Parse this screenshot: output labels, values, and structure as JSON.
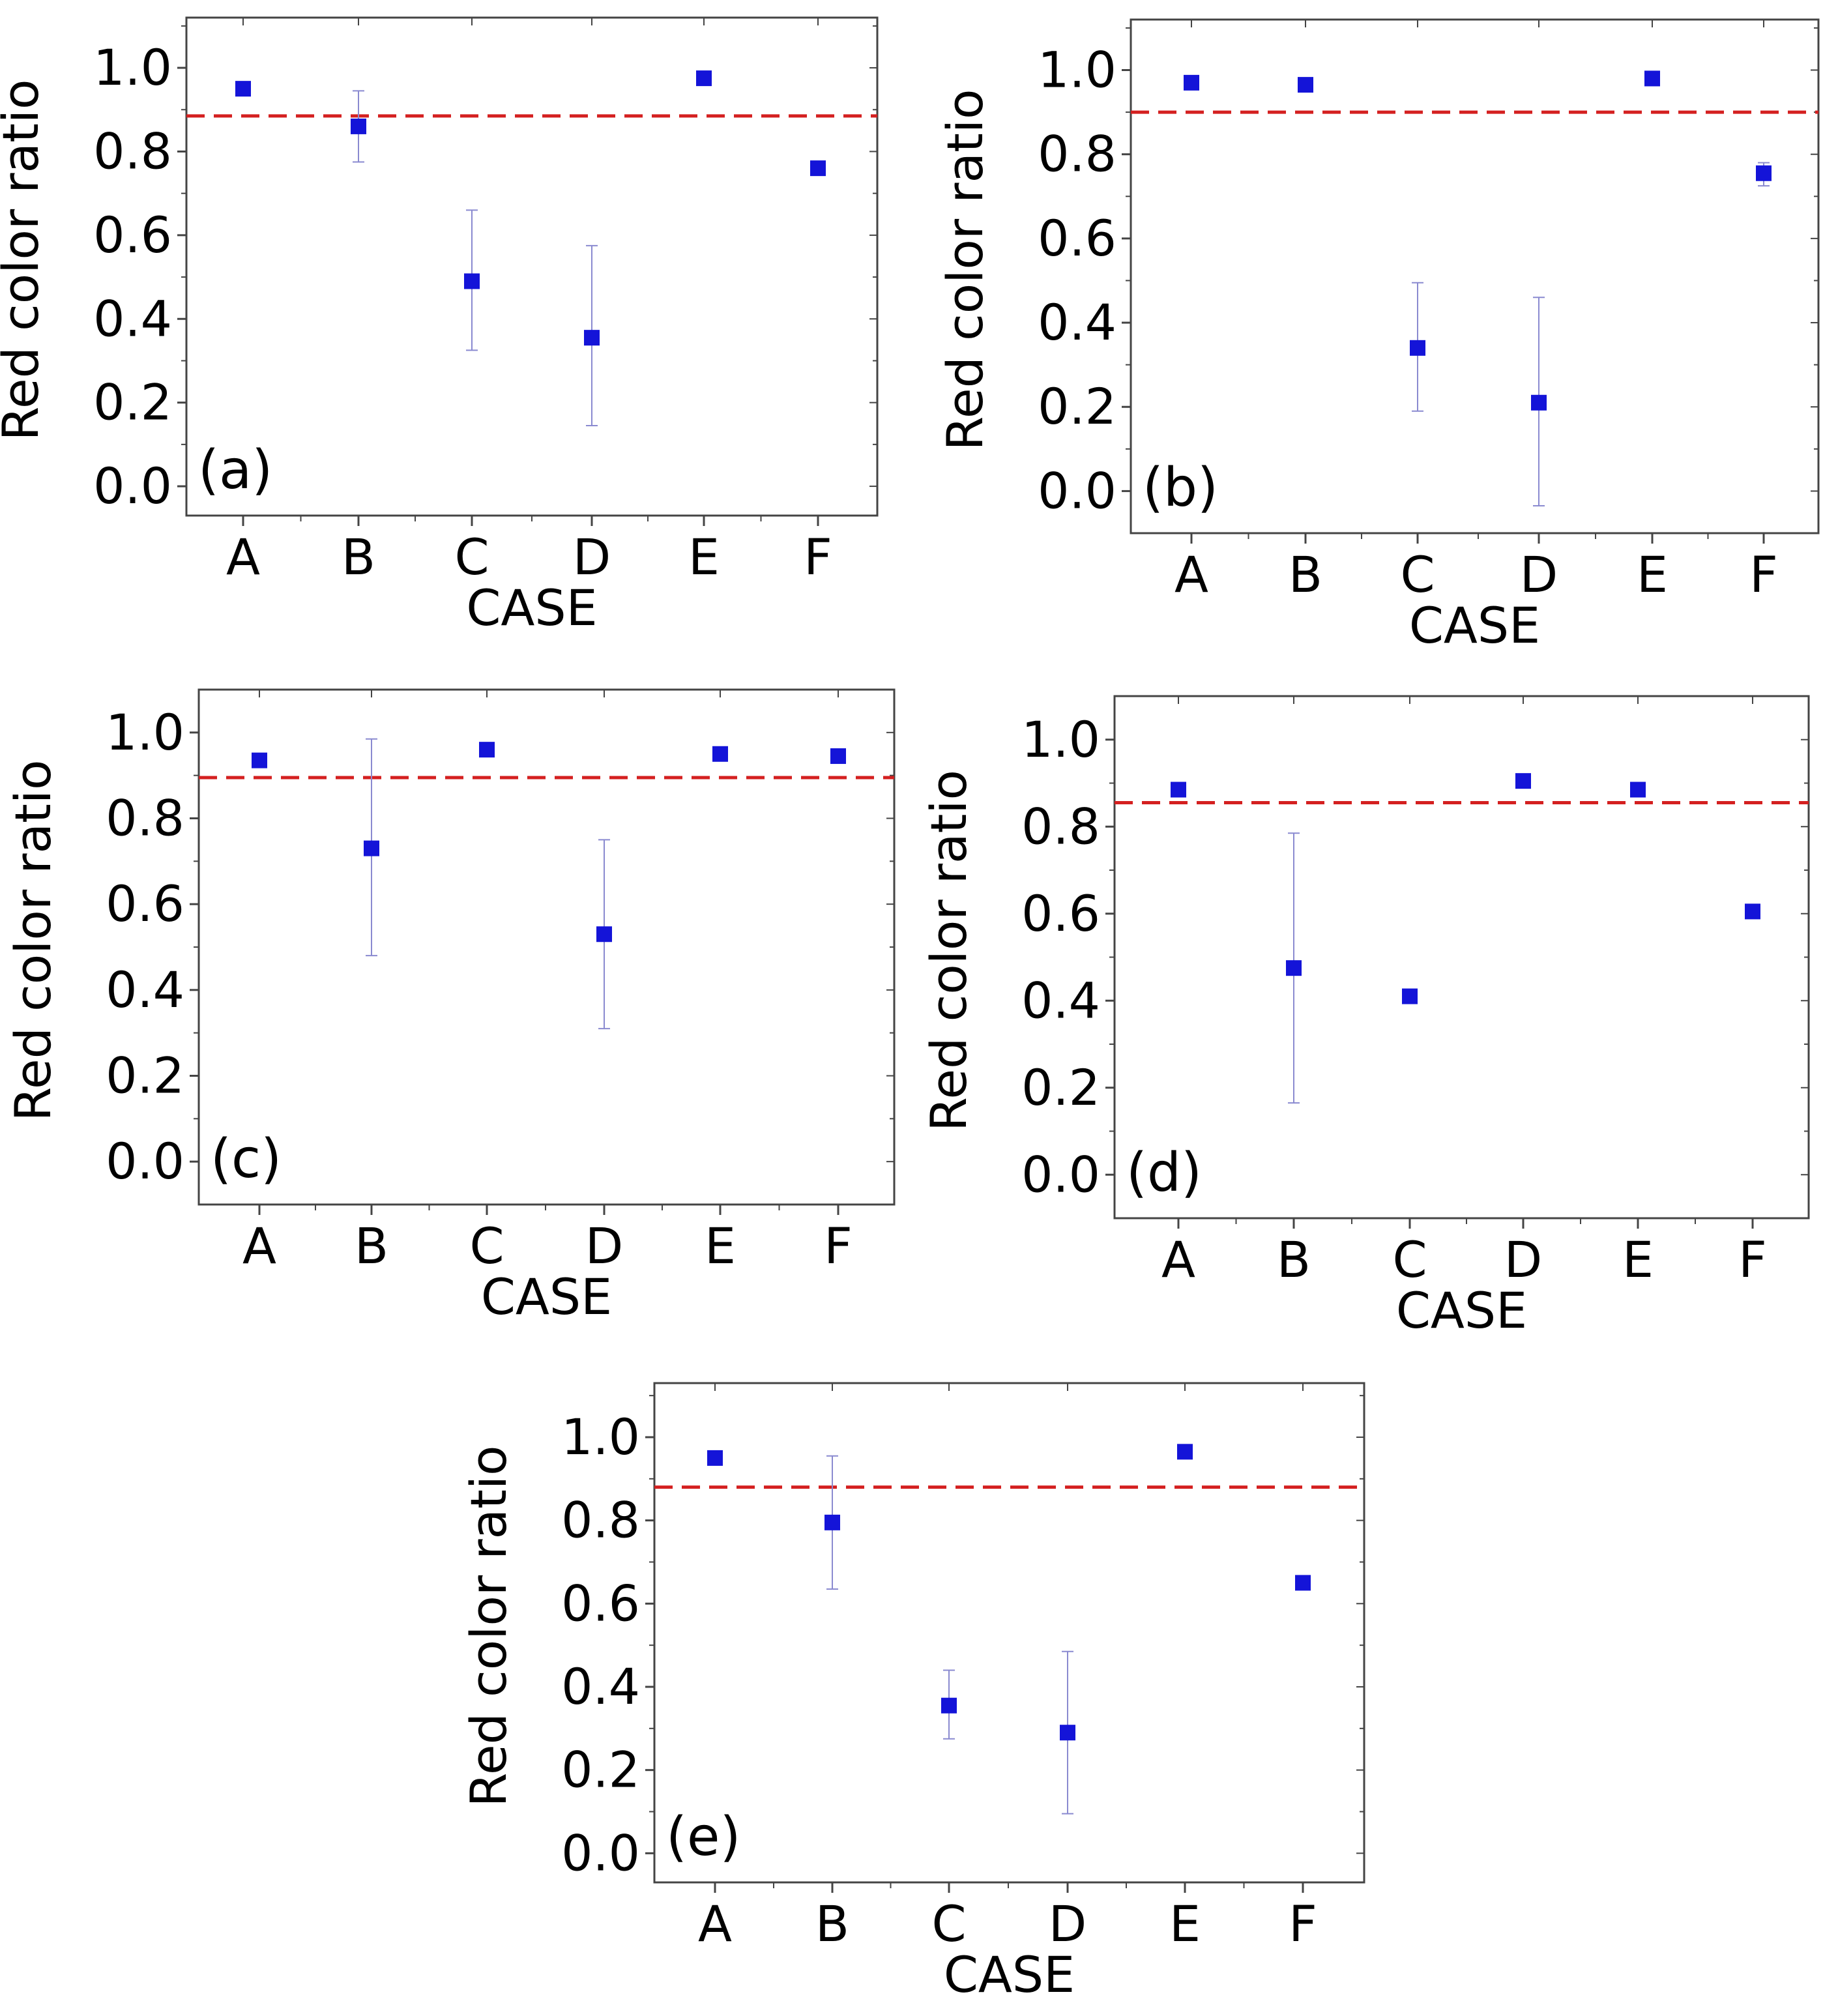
{
  "chart_data": [
    {
      "type": "scatter",
      "panel_label": "(a)",
      "xlabel": "CASE",
      "ylabel": "Red color ratio",
      "categories": [
        "A",
        "B",
        "C",
        "D",
        "E",
        "F"
      ],
      "values": [
        0.95,
        0.86,
        0.49,
        0.355,
        0.975,
        0.76
      ],
      "err_low": [
        0.95,
        0.775,
        0.325,
        0.145,
        0.975,
        0.745
      ],
      "err_high": [
        0.95,
        0.945,
        0.66,
        0.575,
        0.975,
        0.775
      ],
      "threshold": 0.885,
      "ylim": [
        -0.07,
        1.12
      ],
      "yticks": [
        "0.0",
        "0.2",
        "0.4",
        "0.6",
        "0.8",
        "1.0"
      ],
      "grid": false
    },
    {
      "type": "scatter",
      "panel_label": "(b)",
      "xlabel": "CASE",
      "ylabel": "Red color ratio",
      "categories": [
        "A",
        "B",
        "C",
        "D",
        "E",
        "F"
      ],
      "values": [
        0.97,
        0.965,
        0.34,
        0.21,
        0.98,
        0.755
      ],
      "err_low": [
        0.97,
        0.965,
        0.19,
        -0.035,
        0.98,
        0.725
      ],
      "err_high": [
        0.97,
        0.965,
        0.495,
        0.46,
        0.98,
        0.78
      ],
      "threshold": 0.9,
      "ylim": [
        -0.1,
        1.12
      ],
      "yticks": [
        "0.0",
        "0.2",
        "0.4",
        "0.6",
        "0.8",
        "1.0"
      ],
      "grid": false
    },
    {
      "type": "scatter",
      "panel_label": "(c)",
      "xlabel": "CASE",
      "ylabel": "Red color ratio",
      "categories": [
        "A",
        "B",
        "C",
        "D",
        "E",
        "F"
      ],
      "values": [
        0.935,
        0.73,
        0.96,
        0.53,
        0.95,
        0.945
      ],
      "err_low": [
        0.935,
        0.48,
        0.96,
        0.31,
        0.95,
        0.945
      ],
      "err_high": [
        0.935,
        0.985,
        0.96,
        0.75,
        0.95,
        0.945
      ],
      "threshold": 0.895,
      "ylim": [
        -0.1,
        1.1
      ],
      "yticks": [
        "0.0",
        "0.2",
        "0.4",
        "0.6",
        "0.8",
        "1.0"
      ],
      "grid": false
    },
    {
      "type": "scatter",
      "panel_label": "(d)",
      "xlabel": "CASE",
      "ylabel": "Red color ratio",
      "categories": [
        "A",
        "B",
        "C",
        "D",
        "E",
        "F"
      ],
      "values": [
        0.885,
        0.475,
        0.41,
        0.905,
        0.885,
        0.605
      ],
      "err_low": [
        0.885,
        0.165,
        0.41,
        0.905,
        0.885,
        0.605
      ],
      "err_high": [
        0.885,
        0.785,
        0.41,
        0.905,
        0.885,
        0.605
      ],
      "threshold": 0.855,
      "ylim": [
        -0.1,
        1.1
      ],
      "yticks": [
        "0.0",
        "0.2",
        "0.4",
        "0.6",
        "0.8",
        "1.0"
      ],
      "grid": false
    },
    {
      "type": "scatter",
      "panel_label": "(e)",
      "xlabel": "CASE",
      "ylabel": "Red color ratio",
      "categories": [
        "A",
        "B",
        "C",
        "D",
        "E",
        "F"
      ],
      "values": [
        0.95,
        0.795,
        0.355,
        0.29,
        0.965,
        0.65
      ],
      "err_low": [
        0.95,
        0.635,
        0.275,
        0.095,
        0.965,
        0.65
      ],
      "err_high": [
        0.95,
        0.955,
        0.44,
        0.485,
        0.965,
        0.65
      ],
      "threshold": 0.88,
      "ylim": [
        -0.07,
        1.13
      ],
      "yticks": [
        "0.0",
        "0.2",
        "0.4",
        "0.6",
        "0.8",
        "1.0"
      ],
      "grid": false
    }
  ],
  "colors": {
    "marker": "#1414d8",
    "errorbar": "#8a8ad0",
    "threshold": "#d42020",
    "axis": "#444444"
  }
}
